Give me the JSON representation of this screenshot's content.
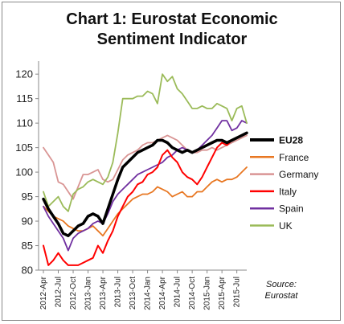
{
  "chart_data": {
    "type": "line",
    "title_line1": "Chart 1: Eurostat Economic",
    "title_line2": "Sentiment Indicator",
    "source_line1": "Source:",
    "source_line2": "Eurostat",
    "ylim": [
      80,
      122
    ],
    "yticks": [
      80,
      85,
      90,
      95,
      100,
      105,
      110,
      115,
      120
    ],
    "grid": false,
    "legend_placement": "right",
    "xticklabels": [
      "2012-Apr",
      "2012-Jul",
      "2012-Oct",
      "2013-Jan",
      "2013-Apr",
      "2013-Jul",
      "2013-Oct",
      "2014-Jan",
      "2014-Apr",
      "2014-Jul",
      "2014-Oct",
      "2015-Jan",
      "2015-Apr",
      "2015-Jul"
    ],
    "x": [
      "2012-Apr",
      "2012-May",
      "2012-Jun",
      "2012-Jul",
      "2012-Aug",
      "2012-Sep",
      "2012-Oct",
      "2012-Nov",
      "2012-Dec",
      "2013-Jan",
      "2013-Feb",
      "2013-Mar",
      "2013-Apr",
      "2013-May",
      "2013-Jun",
      "2013-Jul",
      "2013-Aug",
      "2013-Sep",
      "2013-Oct",
      "2013-Nov",
      "2013-Dec",
      "2014-Jan",
      "2014-Feb",
      "2014-Mar",
      "2014-Apr",
      "2014-May",
      "2014-Jun",
      "2014-Jul",
      "2014-Aug",
      "2014-Sep",
      "2014-Oct",
      "2014-Nov",
      "2014-Dec",
      "2015-Jan",
      "2015-Feb",
      "2015-Mar",
      "2015-Apr",
      "2015-May",
      "2015-Jun",
      "2015-Jul",
      "2015-Aug",
      "2015-Sep"
    ],
    "series": [
      {
        "name": "EU28",
        "color": "#000000",
        "width": 3.5,
        "values": [
          94.5,
          92.5,
          91.0,
          89.5,
          87.5,
          87.0,
          88.0,
          89.0,
          89.5,
          91.0,
          91.5,
          91.0,
          89.5,
          92.5,
          95.5,
          98.5,
          101.0,
          102.0,
          103.0,
          104.0,
          104.5,
          105.0,
          105.5,
          106.5,
          106.5,
          106.0,
          105.0,
          104.5,
          104.0,
          104.5,
          104.0,
          104.5,
          105.0,
          105.5,
          106.0,
          106.5,
          106.5,
          106.0,
          106.5,
          107.0,
          107.5,
          108.0
        ]
      },
      {
        "name": "France",
        "color": "#e87722",
        "width": 1.8,
        "values": [
          93.0,
          92.0,
          91.0,
          90.5,
          90.0,
          89.0,
          88.5,
          88.0,
          88.0,
          88.5,
          89.0,
          88.0,
          87.0,
          88.5,
          90.0,
          91.5,
          92.5,
          93.5,
          94.5,
          95.0,
          95.5,
          95.5,
          96.0,
          97.0,
          96.5,
          96.0,
          95.0,
          95.5,
          96.0,
          95.0,
          95.0,
          96.0,
          96.0,
          97.0,
          98.0,
          98.5,
          98.0,
          98.5,
          98.5,
          99.0,
          100.0,
          101.0
        ]
      },
      {
        "name": "Germany",
        "color": "#d99594",
        "width": 1.8,
        "values": [
          105.0,
          103.5,
          102.0,
          98.0,
          97.5,
          96.0,
          94.5,
          97.0,
          99.5,
          99.5,
          100.0,
          100.5,
          98.5,
          98.0,
          98.5,
          100.5,
          102.5,
          103.5,
          104.0,
          104.5,
          105.5,
          106.0,
          106.0,
          106.5,
          107.0,
          107.5,
          107.0,
          106.5,
          105.5,
          104.5,
          104.0,
          104.0,
          104.5,
          104.5,
          105.0,
          104.5,
          105.0,
          105.5,
          106.0,
          106.5,
          107.0,
          107.5
        ]
      },
      {
        "name": "Italy",
        "color": "#ff0000",
        "width": 2.0,
        "values": [
          85.0,
          81.0,
          82.0,
          83.5,
          82.0,
          81.0,
          81.0,
          81.0,
          81.5,
          82.0,
          82.5,
          85.0,
          83.5,
          86.0,
          88.0,
          91.0,
          93.0,
          95.0,
          96.0,
          97.5,
          98.0,
          99.5,
          100.0,
          101.0,
          103.5,
          104.5,
          103.0,
          102.0,
          100.0,
          99.0,
          98.5,
          97.5,
          99.0,
          101.0,
          103.0,
          105.0,
          106.0,
          105.5,
          106.5,
          107.0,
          107.5,
          108.0
        ]
      },
      {
        "name": "Spain",
        "color": "#7030a0",
        "width": 1.8,
        "values": [
          93.0,
          91.0,
          89.5,
          88.0,
          86.5,
          84.0,
          86.5,
          87.5,
          88.0,
          88.5,
          89.5,
          90.0,
          89.5,
          91.5,
          94.0,
          95.5,
          96.5,
          97.5,
          98.5,
          99.5,
          100.0,
          100.5,
          101.0,
          101.5,
          102.0,
          103.0,
          103.5,
          104.5,
          105.0,
          104.5,
          104.0,
          104.5,
          105.5,
          106.5,
          107.5,
          109.0,
          110.5,
          110.5,
          108.5,
          109.0,
          110.5,
          110.0
        ]
      },
      {
        "name": "UK",
        "color": "#9bbb59",
        "width": 1.8,
        "values": [
          96.0,
          93.0,
          94.0,
          95.0,
          93.0,
          92.0,
          95.5,
          96.5,
          97.0,
          98.0,
          98.5,
          98.0,
          97.5,
          99.0,
          102.0,
          108.0,
          115.0,
          115.0,
          115.0,
          115.5,
          115.5,
          116.5,
          116.0,
          114.0,
          120.0,
          118.5,
          119.5,
          117.0,
          116.0,
          114.5,
          113.0,
          113.0,
          113.5,
          113.0,
          113.0,
          114.0,
          113.5,
          113.0,
          110.5,
          113.0,
          113.5,
          110.0
        ]
      }
    ]
  }
}
